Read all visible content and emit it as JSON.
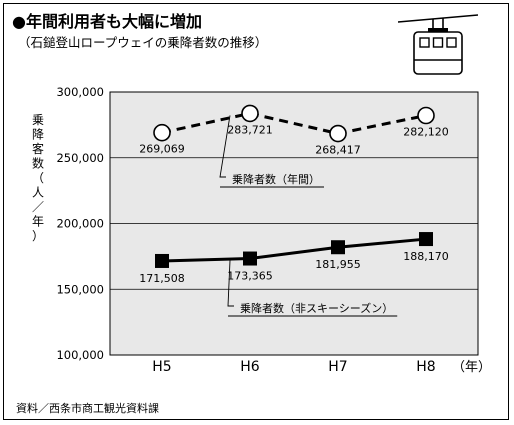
{
  "header": {
    "title": "●年間利用者も大幅に増加",
    "subtitle": "（石鎚登山ロープウェイの乗降者数の推移）"
  },
  "footer": {
    "source": "資料／西条市商工観光資料課"
  },
  "icons": {
    "gondola": "ropeway-gondola-icon"
  },
  "chart_data": {
    "type": "line",
    "x": [
      "H5",
      "H6",
      "H7",
      "H8"
    ],
    "xunit": "（年）",
    "ylabel": "乗降客数（人／年）",
    "ylim": [
      100000,
      300000
    ],
    "yticks": [
      100000,
      150000,
      200000,
      250000,
      300000
    ],
    "ytick_labels": [
      "100,000",
      "150,000",
      "200,000",
      "250,000",
      "300,000"
    ],
    "grid": "horizontal",
    "plot_background": "#e8e8e8",
    "series": [
      {
        "name": "乗降者数（年間）",
        "values": [
          269069,
          283721,
          268417,
          282120
        ],
        "value_labels": [
          "269,069",
          "283,721",
          "268,417",
          "282,120"
        ],
        "style": "dashed",
        "marker": "open-circle",
        "color": "#000000"
      },
      {
        "name": "乗降者数（非スキーシーズン）",
        "values": [
          171508,
          173365,
          181955,
          188170
        ],
        "value_labels": [
          "171,508",
          "173,365",
          "181,955",
          "188,170"
        ],
        "style": "solid",
        "marker": "filled-square",
        "color": "#000000"
      }
    ]
  }
}
